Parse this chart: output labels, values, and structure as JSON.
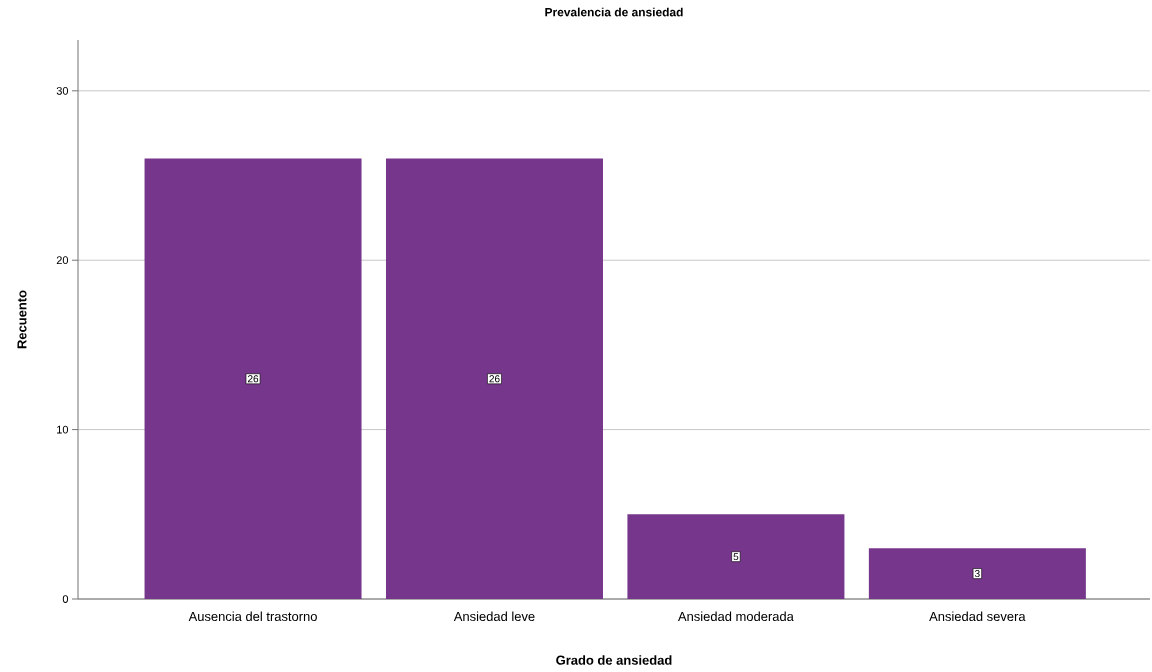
{
  "chart_data": {
    "type": "bar",
    "title": "Prevalencia de ansiedad",
    "xlabel": "Grado de ansiedad",
    "ylabel": "Recuento",
    "categories": [
      "Ausencia del trastorno",
      "Ansiedad leve",
      "Ansiedad moderada",
      "Ansiedad severa"
    ],
    "values": [
      26,
      26,
      5,
      3
    ],
    "color": "#76368c",
    "ylim": [
      0,
      33
    ],
    "yticks": [
      0,
      10,
      20,
      30
    ],
    "grid": "y",
    "data_labels": true
  }
}
